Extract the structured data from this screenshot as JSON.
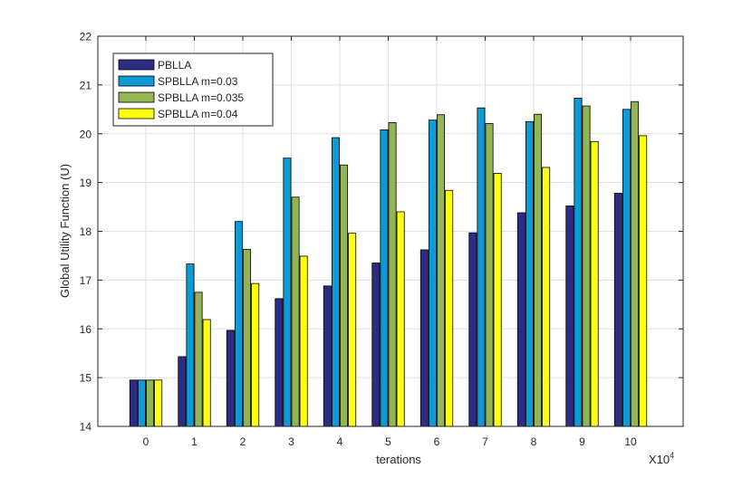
{
  "chart_data": {
    "type": "bar",
    "title": "",
    "xlabel": "terations",
    "ylabel": "Global Utility Function (U)",
    "x_exponent_base": "X10",
    "x_exponent_power": "4",
    "categories": [
      "0",
      "1",
      "2",
      "3",
      "4",
      "5",
      "6",
      "7",
      "8",
      "9",
      "10"
    ],
    "ylim": [
      14,
      22
    ],
    "yticks": [
      "14",
      "15",
      "16",
      "17",
      "18",
      "19",
      "20",
      "21",
      "22"
    ],
    "grid": true,
    "legend_position": "top-left",
    "series": [
      {
        "name": "PBLLA",
        "color": "#2e2c82",
        "values": [
          14.95,
          15.43,
          15.97,
          16.62,
          16.88,
          17.35,
          17.62,
          17.97,
          18.38,
          18.52,
          18.78
        ]
      },
      {
        "name": "SPBLLA m=0.03",
        "color": "#0f9ad6",
        "values": [
          14.95,
          17.33,
          18.2,
          19.5,
          19.92,
          20.08,
          20.28,
          20.53,
          20.25,
          20.73,
          20.5
        ]
      },
      {
        "name": "SPBLLA m=0.035",
        "color": "#93b554",
        "values": [
          14.95,
          16.75,
          17.63,
          18.7,
          19.36,
          20.23,
          20.39,
          20.21,
          20.4,
          20.57,
          20.66
        ]
      },
      {
        "name": "SPBLLA m=0.04",
        "color": "#ffff14",
        "values": [
          14.95,
          16.19,
          16.93,
          17.49,
          17.96,
          18.4,
          18.84,
          19.19,
          19.31,
          19.84,
          19.96
        ]
      }
    ]
  }
}
